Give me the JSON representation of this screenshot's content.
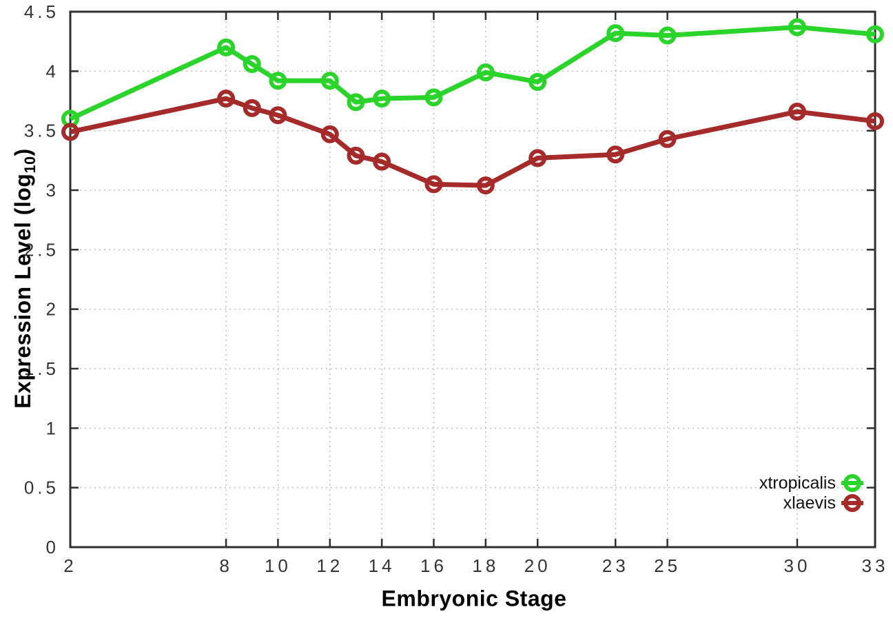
{
  "chart_data": {
    "type": "line",
    "title": "",
    "xlabel": "Embryonic Stage",
    "ylabel": "Expression Level (log10)",
    "ylabel_parts": {
      "prefix": "Expression Level (log",
      "sub": "10",
      "suffix": ")"
    },
    "xlim": [
      2,
      33
    ],
    "ylim": [
      0,
      4.5
    ],
    "xticks": [
      2,
      8,
      10,
      12,
      14,
      16,
      18,
      20,
      23,
      25,
      30,
      33
    ],
    "xtick_labels": [
      "2",
      "8",
      "10",
      "12",
      "14",
      "16",
      "18",
      "20",
      "23",
      "25",
      "30",
      "33"
    ],
    "yticks": [
      0,
      0.5,
      1,
      1.5,
      2,
      2.5,
      3,
      3.5,
      4,
      4.5
    ],
    "ytick_labels": [
      "0",
      "0.5",
      "1",
      "1.5",
      "2",
      "2.5",
      "3",
      "3.5",
      "4",
      "4.5"
    ],
    "grid": true,
    "legend_position": "bottom-right",
    "x": [
      2,
      8,
      9,
      10,
      12,
      13,
      14,
      16,
      18,
      20,
      23,
      25,
      30,
      33
    ],
    "series": [
      {
        "name": "xtropicalis",
        "color": "#2bd42b",
        "values": [
          3.6,
          4.2,
          4.06,
          3.92,
          3.92,
          3.74,
          3.77,
          3.78,
          3.99,
          3.91,
          4.32,
          4.3,
          4.37,
          4.31
        ]
      },
      {
        "name": "xlaevis",
        "color": "#a52a2a",
        "values": [
          3.49,
          3.77,
          3.69,
          3.63,
          3.47,
          3.29,
          3.24,
          3.05,
          3.04,
          3.27,
          3.3,
          3.43,
          3.66,
          3.58
        ]
      }
    ],
    "colors": {
      "background": "#ffffff",
      "axis": "#2e2e2e",
      "grid": "#bdbdbd",
      "tick_text": "#333333",
      "title_text": "#000000"
    }
  }
}
